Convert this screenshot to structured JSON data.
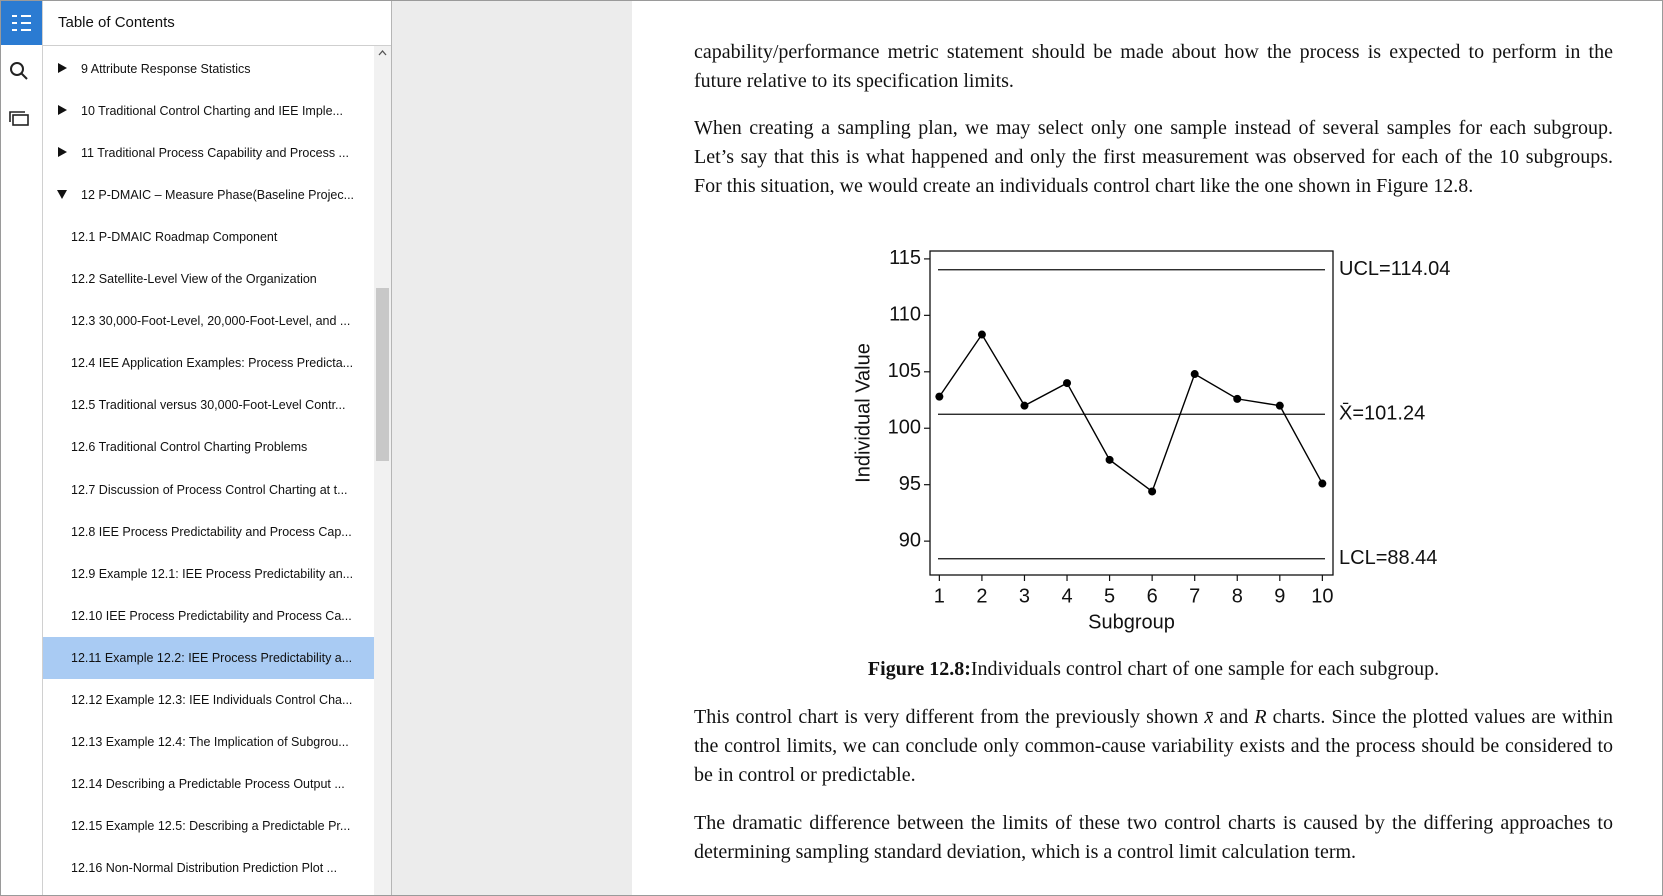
{
  "toc": {
    "title": "Table of Contents",
    "items": [
      {
        "label": "9 Attribute Response Statistics"
      },
      {
        "label": "10 Traditional Control Charting and IEE Imple..."
      },
      {
        "label": "11 Traditional Process Capability and Process ..."
      },
      {
        "label": "12 P-DMAIC – Measure Phase(Baseline Projec...",
        "sections": [
          "12.1 P-DMAIC Roadmap Component",
          "12.2 Satellite-Level View of the Organization",
          "12.3 30,000-Foot-Level, 20,000-Foot-Level, and ...",
          "12.4 IEE Application Examples: Process Predicta...",
          "12.5 Traditional versus 30,000-Foot-Level Contr...",
          "12.6 Traditional Control Charting Problems",
          "12.7 Discussion of Process Control Charting at t...",
          "12.8 IEE Process Predictability and Process Cap...",
          "12.9 Example 12.1: IEE Process Predictability an...",
          "12.10 IEE Process Predictability and Process Ca...",
          "12.11 Example 12.2: IEE Process Predictability a...",
          "12.12 Example 12.3: IEE Individuals Control Cha...",
          "12.13 Example 12.4: The Implication of Subgrou...",
          "12.14 Describing a Predictable Process Output ...",
          "12.15 Example 12.5: Describing a Predictable Pr...",
          "12.16 Non-Normal Distribution Prediction Plot ..."
        ]
      }
    ]
  },
  "document": {
    "paragraphs": [
      [
        "capability/performance metric statement should be made about how the process is expected to perform in the future relative to its specification limits."
      ],
      [
        "When creating a sampling plan, we may select only one sample instead of several samples for each subgroup. Let’s say that this is what happened and only the first measurement was observed for each of the 10 subgroups. For this situation, we would create an individuals control chart like the one shown in Figure 12.8."
      ],
      [
        "This control chart is very different from the previously shown ",
        "x̄",
        " and ",
        "R",
        " charts. Since the plotted values are within the control limits, we can conclude only common-cause variability exists and the process should be considered to be in control or predictable."
      ],
      [
        "The dramatic difference between the limits of these two control charts is caused by the differing approaches to determining sampling standard deviation, which is a control limit calculation term."
      ]
    ],
    "caption": {
      "label": "Figure 12.8:",
      "text": "Individuals control chart of one sample for each subgroup."
    }
  },
  "chart_data": {
    "type": "line",
    "x_label": "Subgroup",
    "y_label": "Individual Value",
    "x": [
      1,
      2,
      3,
      4,
      5,
      6,
      7,
      8,
      9,
      10
    ],
    "series": [
      {
        "color": "#000000",
        "values": [
          102.8,
          108.3,
          102.0,
          104.0,
          97.2,
          94.4,
          104.8,
          102.6,
          102.0,
          95.1
        ]
      }
    ],
    "xlim": [
      0.78,
      10.25
    ],
    "xticks": [
      1,
      2,
      3,
      4,
      5,
      6,
      7,
      8,
      9,
      10
    ],
    "ylim": [
      87,
      115.7
    ],
    "yticks": [
      90,
      95,
      100,
      105,
      110,
      115
    ],
    "control_lines": [
      {
        "value": 114.04,
        "label": "UCL=114.04"
      },
      {
        "value": 101.24,
        "label": "X̄=101.24"
      },
      {
        "value": 88.44,
        "label": "LCL=88.44"
      }
    ]
  }
}
